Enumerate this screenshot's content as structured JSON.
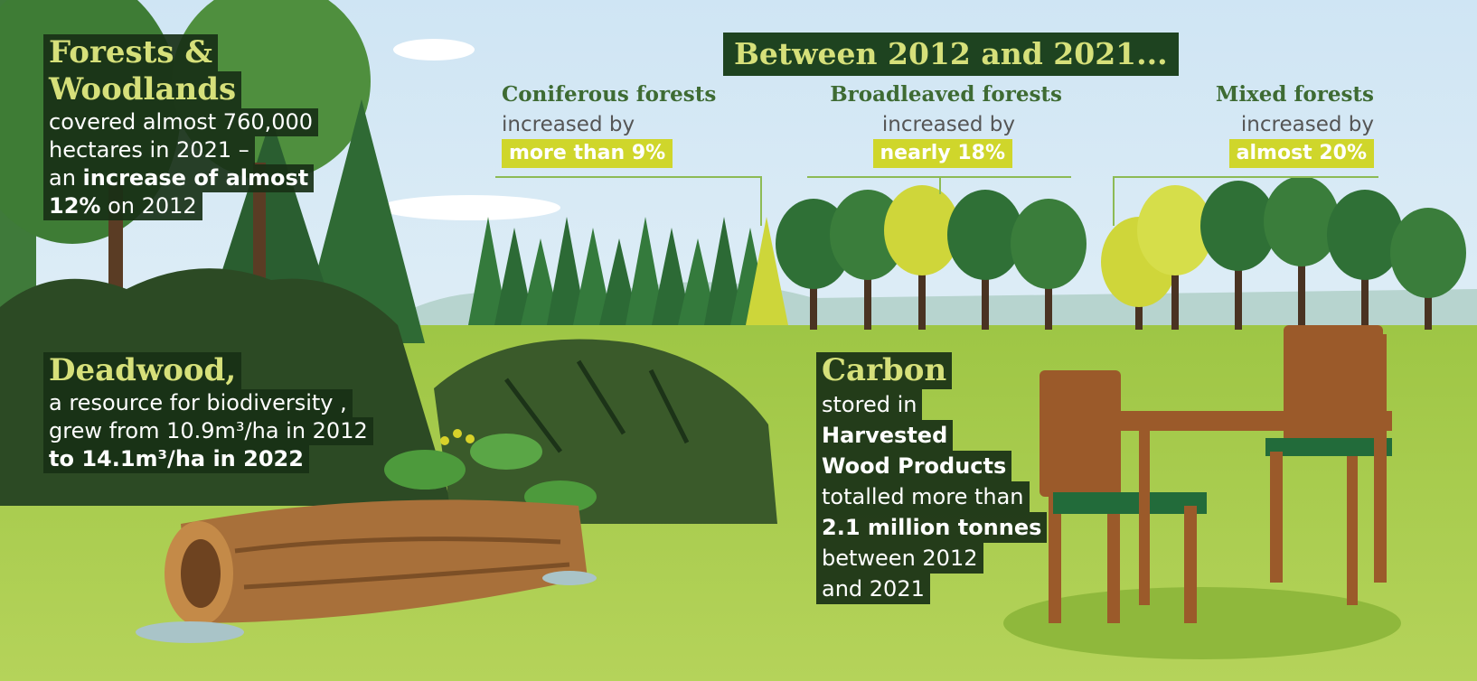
{
  "header": "Between 2012 and 2021...",
  "forests": {
    "title": [
      "Forests &",
      "Woodlands"
    ],
    "lines": [
      [
        {
          "text": "covered almost 760,000"
        }
      ],
      [
        {
          "text": "hectares in 2021 –"
        }
      ],
      [
        {
          "text": "an "
        },
        {
          "text": "increase of almost",
          "bold": true
        }
      ],
      [
        {
          "text": "12%",
          "bold": true
        },
        {
          "text": " on 2012"
        }
      ]
    ]
  },
  "forest_types": [
    {
      "name": "Coniferous forests",
      "verb": "increased by",
      "change": "more than 9%"
    },
    {
      "name": "Broadleaved forests",
      "verb": "increased by",
      "change": "nearly 18%"
    },
    {
      "name": "Mixed forests",
      "verb": "increased by",
      "change": "almost 20%"
    }
  ],
  "deadwood": {
    "title": [
      "Deadwood,"
    ],
    "lines": [
      [
        {
          "text": "a resource for biodiversity ,"
        }
      ],
      [
        {
          "text": "grew from 10.9m³/ha in 2012"
        }
      ],
      [
        {
          "text": "to 14.1m³/ha in 2022",
          "bold": true
        }
      ]
    ]
  },
  "carbon": {
    "title": [
      "Carbon"
    ],
    "lines": [
      [
        {
          "text": "stored in"
        }
      ],
      [
        {
          "text": "Harvested",
          "bold": true
        }
      ],
      [
        {
          "text": "Wood Products",
          "bold": true
        }
      ],
      [
        {
          "text": "totalled more than"
        }
      ],
      [
        {
          "text": "2.1 million tonnes",
          "bold": true
        }
      ],
      [
        {
          "text": "between 2012"
        }
      ],
      [
        {
          "text": "and 2021"
        }
      ]
    ]
  }
}
